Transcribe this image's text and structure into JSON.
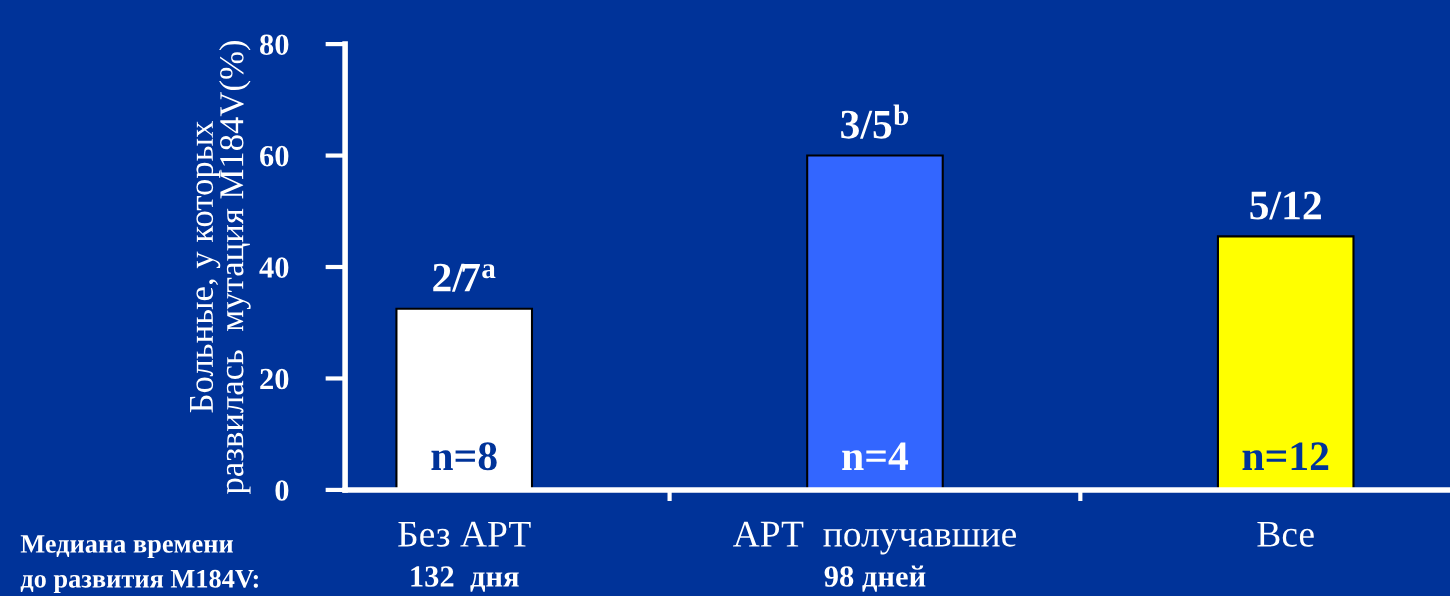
{
  "chart_data": {
    "type": "bar",
    "ylabel": "Больные, у которых\nразвилась  мутация M184V(%)",
    "categories": [
      "Без АРТ",
      "АРТ  получавшие",
      "Все"
    ],
    "values": [
      32.5,
      60,
      45.5
    ],
    "colors": [
      "#ffffff",
      "#3366ff",
      "#ffff00"
    ],
    "ylim": [
      0,
      80
    ],
    "yticks": [
      0,
      20,
      40,
      60,
      80
    ],
    "grid": false,
    "legend": false,
    "annotations": [
      {
        "text": "2/7$^{a}$",
        "x": "Без АРТ",
        "y": 32.5
      },
      {
        "text": "3/5$^{b}$",
        "x": "АРТ  получавшие",
        "y": 60
      },
      {
        "text": "5/12",
        "x": "Все",
        "y": 45.5
      },
      {
        "text": "n=8",
        "x": "Без АРТ",
        "y": 0
      },
      {
        "text": "n=4",
        "x": "АРТ  получавшие",
        "y": 0
      },
      {
        "text": "n=12",
        "x": "Все",
        "y": 0
      },
      "Медиана времени\nдо развития M184V:",
      "132  дня",
      "98 дней"
    ]
  }
}
